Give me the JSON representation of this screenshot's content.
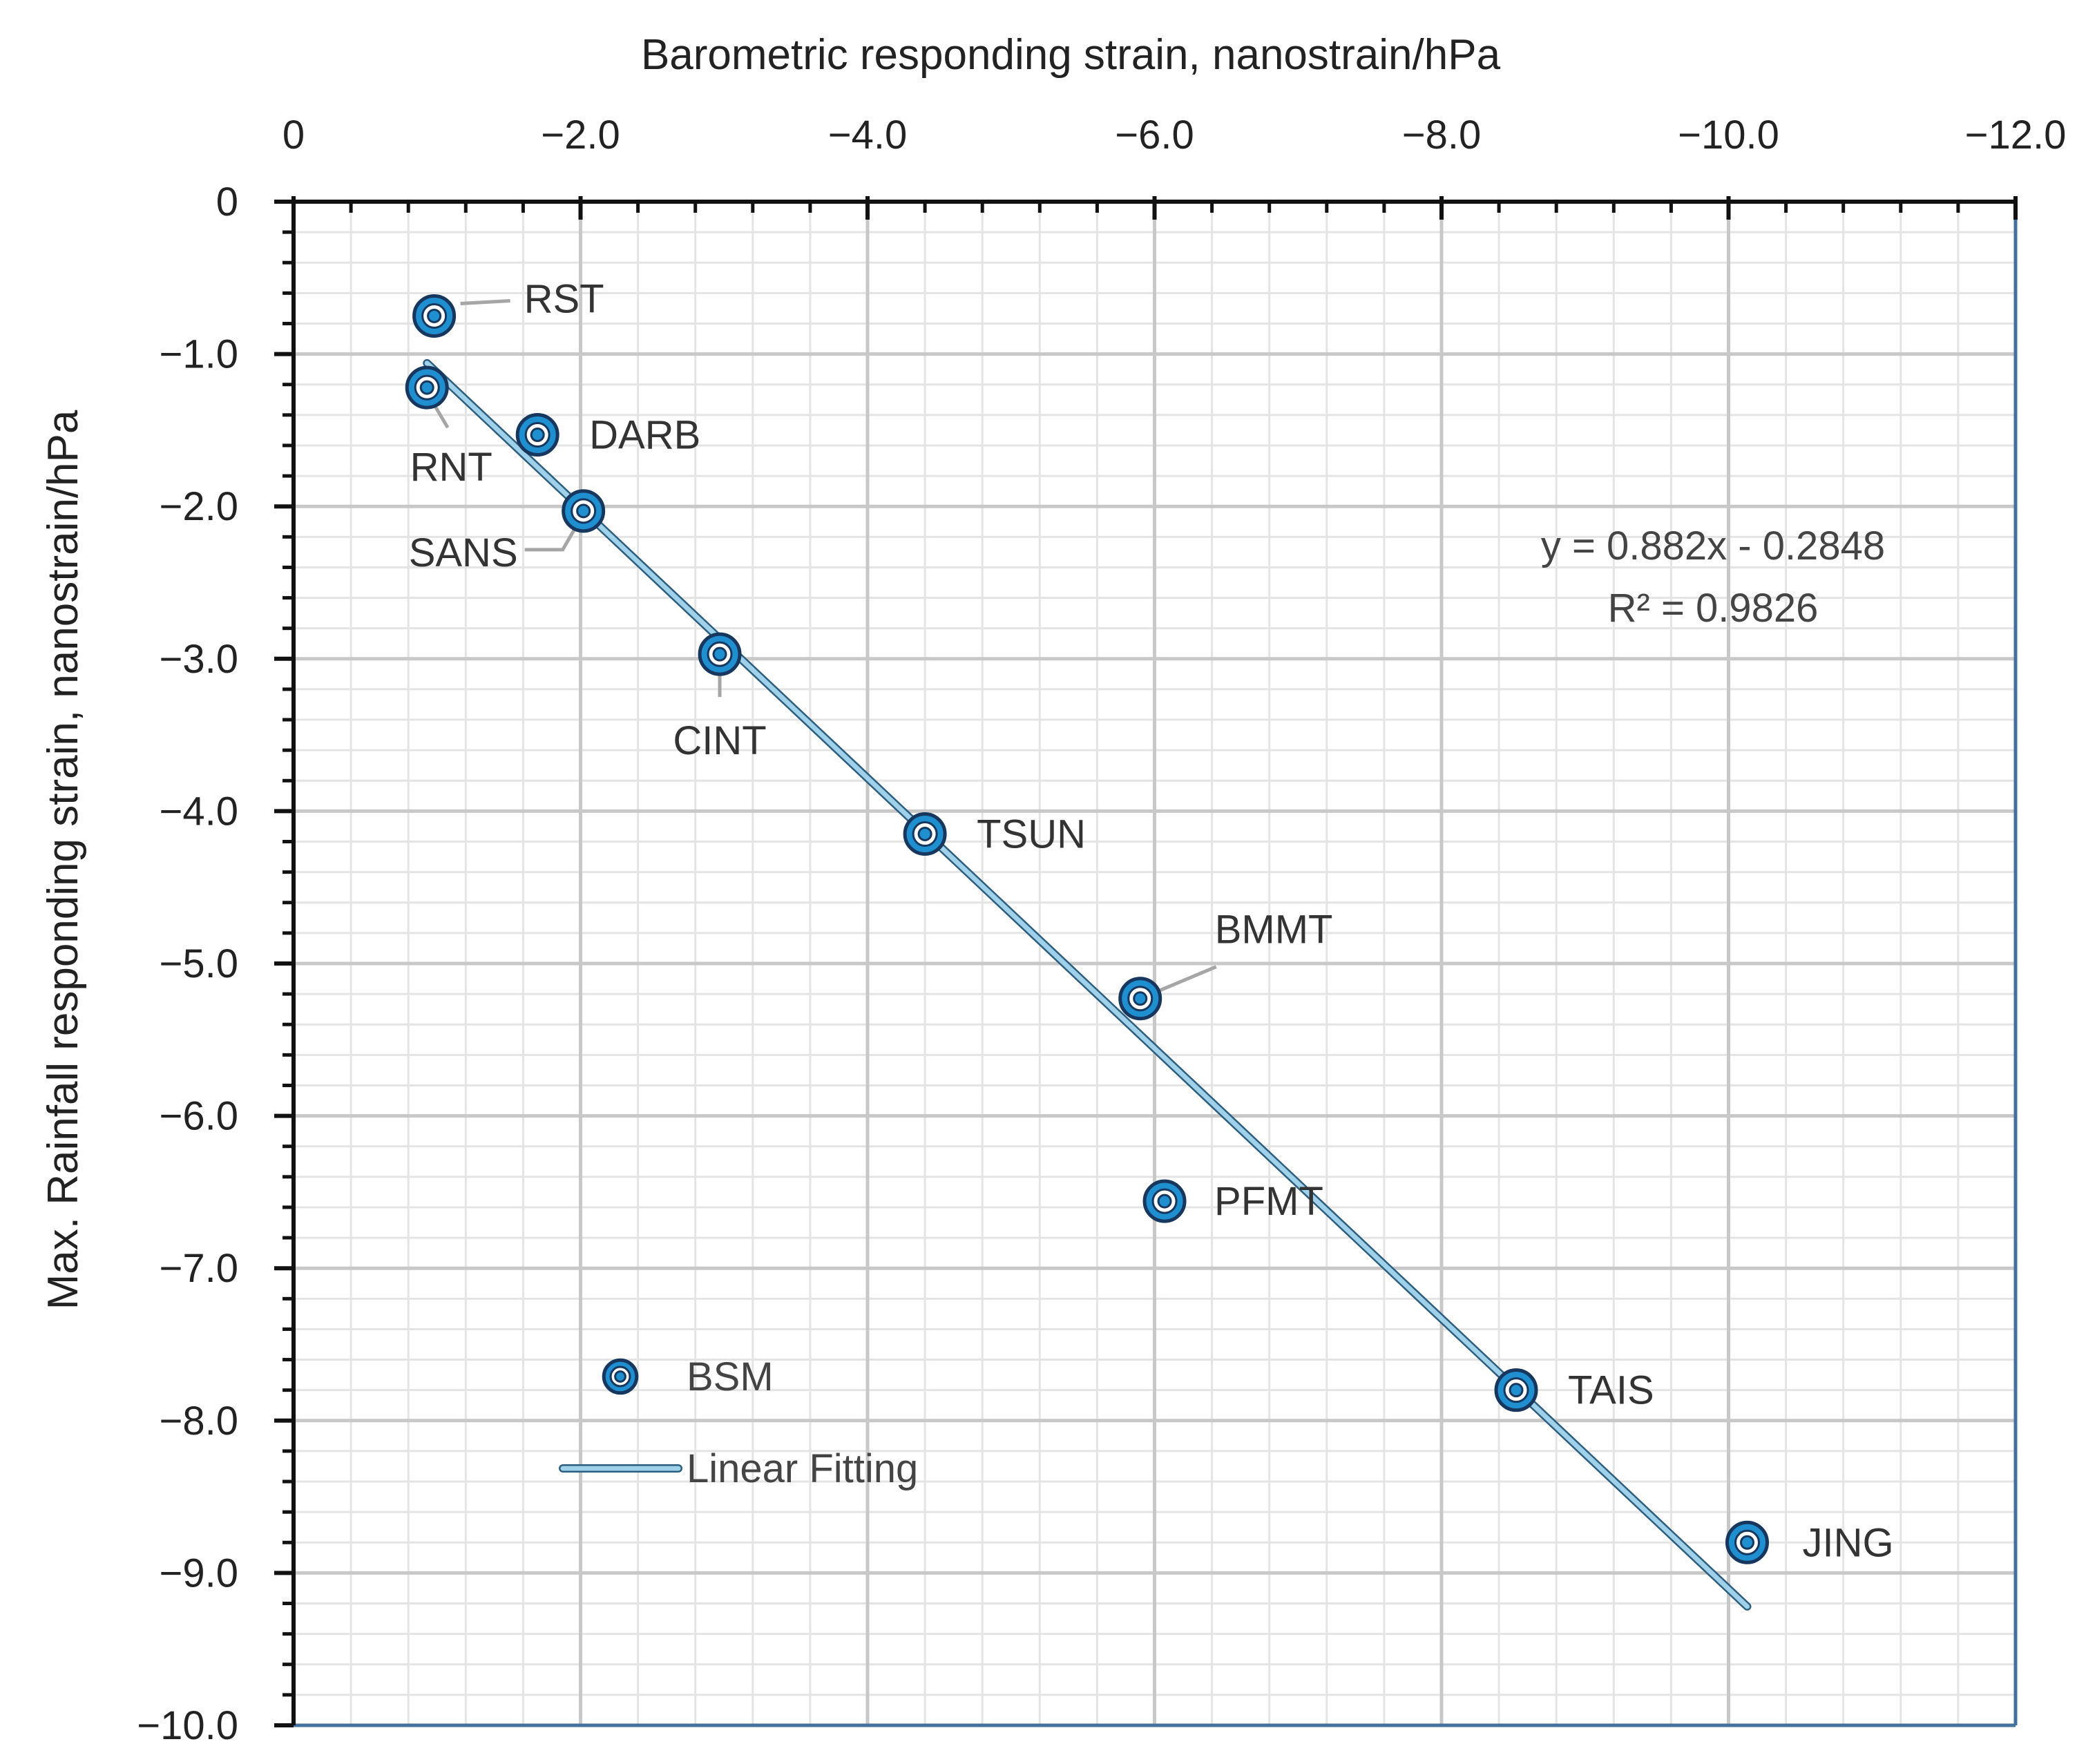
{
  "chart_data": {
    "type": "scatter",
    "xlabel": "Barometric responding strain, nanostrain/hPa",
    "ylabel": "Max. Rainfall responding strain, nanostrain/hPa",
    "xlim": [
      0,
      -12
    ],
    "ylim": [
      0,
      -10
    ],
    "x_ticks": [
      0,
      -2,
      -4,
      -6,
      -8,
      -10,
      -12
    ],
    "x_tick_labels": [
      "0",
      "−2.0",
      "−4.0",
      "−6.0",
      "−8.0",
      "−10.0",
      "−12.0"
    ],
    "y_ticks": [
      0,
      -1,
      -2,
      -3,
      -4,
      -5,
      -6,
      -7,
      -8,
      -9,
      -10
    ],
    "y_tick_labels": [
      "0",
      "−1.0",
      "−2.0",
      "−3.0",
      "−4.0",
      "−5.0",
      "−6.0",
      "−7.0",
      "−8.0",
      "−9.0",
      "−10.0"
    ],
    "grid": true,
    "series": [
      {
        "name": "BSM",
        "points": [
          {
            "label": "RST",
            "x": -0.98,
            "y": -0.75
          },
          {
            "label": "RNT",
            "x": -0.93,
            "y": -1.22
          },
          {
            "label": "DARB",
            "x": -1.7,
            "y": -1.53
          },
          {
            "label": "SANS",
            "x": -2.02,
            "y": -2.03
          },
          {
            "label": "CINT",
            "x": -2.97,
            "y": -2.97
          },
          {
            "label": "TSUN",
            "x": -4.4,
            "y": -4.15
          },
          {
            "label": "BMMT",
            "x": -5.9,
            "y": -5.23
          },
          {
            "label": "PFMT",
            "x": -6.07,
            "y": -6.56
          },
          {
            "label": "TAIS",
            "x": -8.52,
            "y": -7.8
          },
          {
            "label": "JING",
            "x": -10.13,
            "y": -8.8
          }
        ]
      },
      {
        "name": "Linear Fitting",
        "line": {
          "x1": -0.93,
          "y1": -1.06,
          "x2": -10.13,
          "y2": -9.22
        }
      }
    ],
    "annotation": {
      "equation": "y = 0.882x - 0.2848",
      "r_squared": "R² = 0.9826"
    },
    "legend": {
      "position": "bottom-left",
      "entries": [
        "BSM",
        "Linear Fitting"
      ]
    }
  },
  "colors": {
    "marker_fill": "#1f8fd0",
    "marker_stroke": "#17375e",
    "fit_line": "#9fd2ea",
    "fit_line_edge": "#2e5e7e",
    "grid_major": "#c8c8c8",
    "grid_minor": "#e4e4e4",
    "axis": "#111111",
    "frame": "#41719c",
    "leader": "#a6a6a6"
  }
}
